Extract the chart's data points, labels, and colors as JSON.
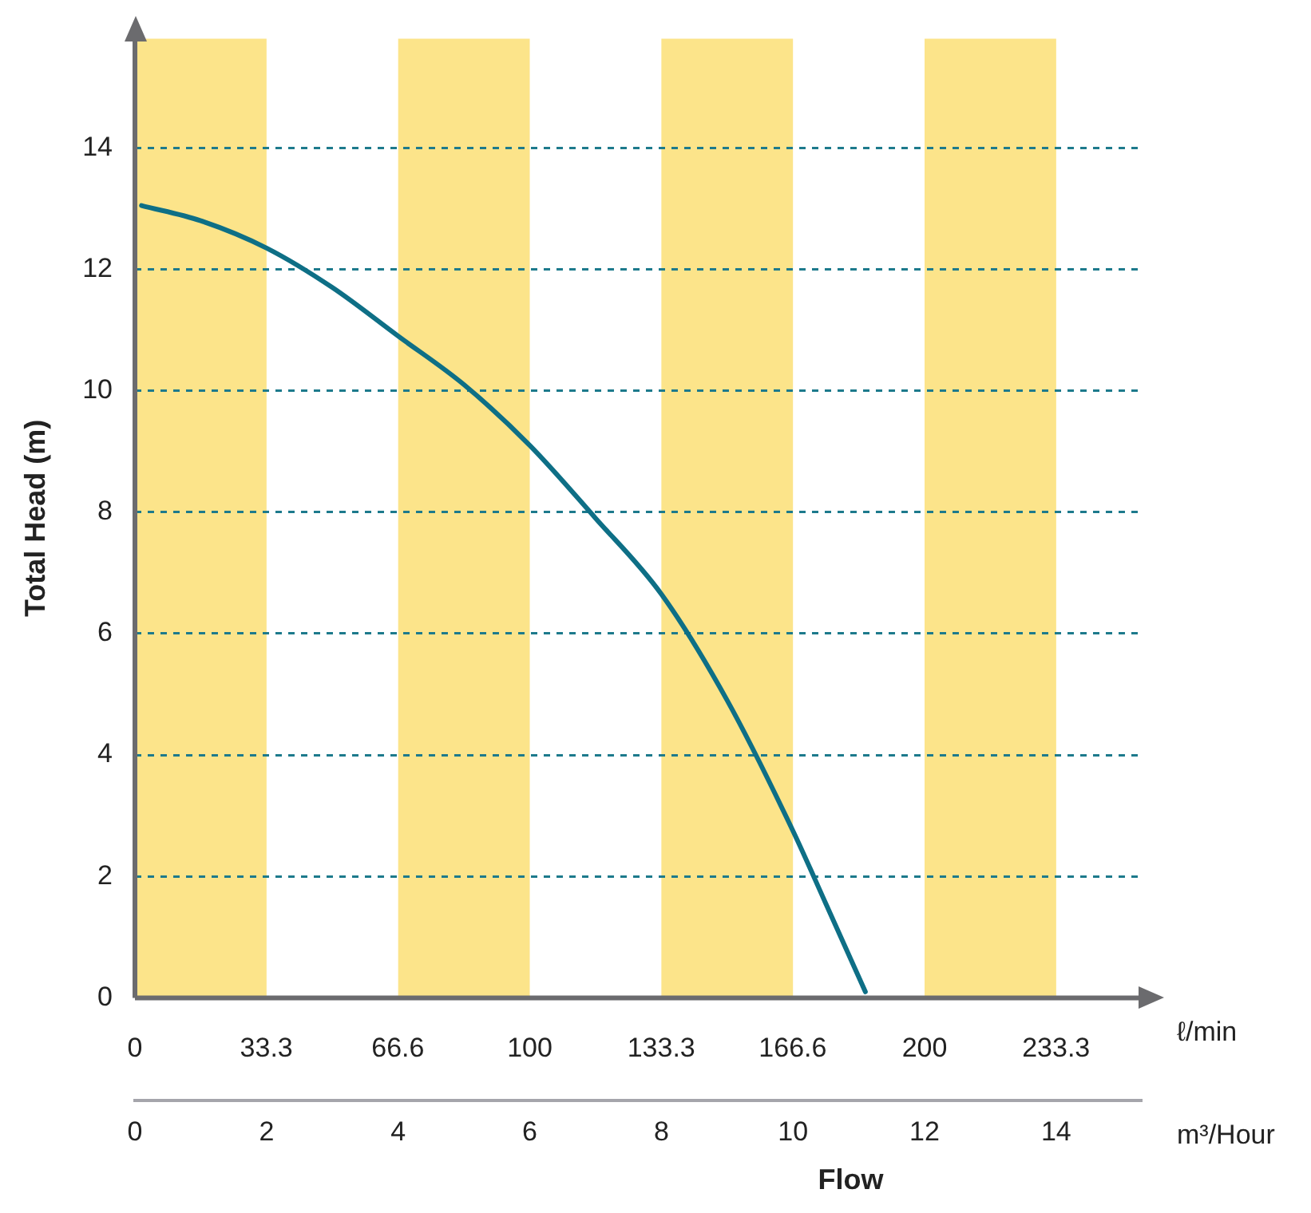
{
  "chart_data": {
    "type": "line",
    "ylabel": "Total Head (m)",
    "xlabel": "m³/Hour",
    "x2label": "ℓ/min",
    "annotations": [
      "Flow"
    ],
    "x": [
      0.1,
      1,
      2,
      3,
      4,
      5,
      6,
      7,
      8,
      9,
      10,
      10.5,
      11.1
    ],
    "series": [
      {
        "color": "#0e6f86",
        "values": [
          13.05,
          12.8,
          12.35,
          11.7,
          10.9,
          10.1,
          9.1,
          7.9,
          6.65,
          4.9,
          2.75,
          1.55,
          0.1
        ]
      }
    ],
    "xlim": [
      0,
      15.3
    ],
    "xticks": [
      0,
      2,
      4,
      6,
      8,
      10,
      12,
      14
    ],
    "x2lim": [
      0,
      255
    ],
    "x2ticks": [
      0,
      33.3,
      66.6,
      100,
      133.3,
      166.6,
      200,
      233.3
    ],
    "ylim": [
      0,
      15.8
    ],
    "yticks": [
      0,
      2,
      4,
      6,
      8,
      10,
      12,
      14
    ],
    "bands": [
      {
        "axis": "x",
        "from": 0,
        "to": 2,
        "color": "#fce48a"
      },
      {
        "axis": "x",
        "from": 4,
        "to": 6,
        "color": "#fce48a"
      },
      {
        "axis": "x",
        "from": 8,
        "to": 10,
        "color": "#fce48a"
      },
      {
        "axis": "x",
        "from": 12,
        "to": 14,
        "color": "#fce48a"
      }
    ],
    "grid": "y",
    "line_style": "solid",
    "marker": "none",
    "legend": false
  }
}
